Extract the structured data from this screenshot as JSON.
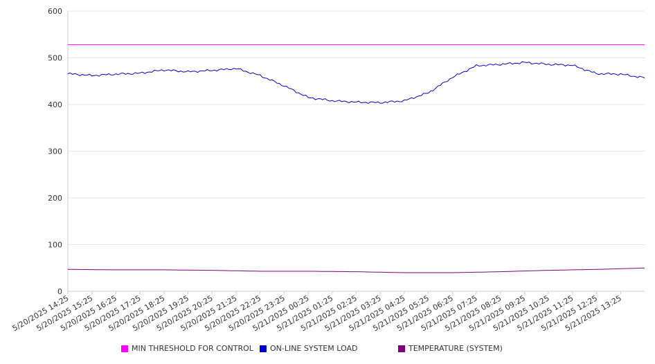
{
  "chart_data": {
    "type": "line",
    "title": "",
    "xlabel": "",
    "ylabel": "",
    "ylim": [
      0,
      600
    ],
    "yticks": [
      0,
      100,
      200,
      300,
      400,
      500,
      600
    ],
    "grid": true,
    "legend_position": "bottom",
    "x_tick_labels": [
      "5/20/2025 14:25",
      "5/20/2025 15:25",
      "5/20/2025 16:25",
      "5/20/2025 17:25",
      "5/20/2025 18:25",
      "5/20/2025 19:25",
      "5/20/2025 20:25",
      "5/20/2025 21:25",
      "5/20/2025 22:25",
      "5/20/2025 23:25",
      "5/21/2025 00:25",
      "5/21/2025 01:25",
      "5/21/2025 02:25",
      "5/21/2025 03:25",
      "5/21/2025 04:25",
      "5/21/2025 05:25",
      "5/21/2025 06:25",
      "5/21/2025 07:25",
      "5/21/2025 08:25",
      "5/21/2025 09:25",
      "5/21/2025 10:25",
      "5/21/2025 11:25",
      "5/21/2025 12:25",
      "5/21/2025 13:25"
    ],
    "x_range": [
      "5/20/2025 14:25",
      "5/21/2025 14:25"
    ],
    "series": [
      {
        "name": "MIN THRESHOLD FOR CONTROL",
        "color": "#ff00ff",
        "x": [
          "5/20/2025 14:25",
          "5/21/2025 14:25"
        ],
        "values": [
          528,
          528
        ]
      },
      {
        "name": "ON-LINE SYSTEM LOAD",
        "color": "#0000cc",
        "x": [
          "5/20/2025 14:25",
          "5/20/2025 15:25",
          "5/20/2025 16:25",
          "5/20/2025 17:25",
          "5/20/2025 18:25",
          "5/20/2025 19:25",
          "5/20/2025 20:25",
          "5/20/2025 21:25",
          "5/20/2025 22:25",
          "5/20/2025 23:25",
          "5/21/2025 00:25",
          "5/21/2025 01:25",
          "5/21/2025 02:25",
          "5/21/2025 03:25",
          "5/21/2025 04:25",
          "5/21/2025 05:25",
          "5/21/2025 06:25",
          "5/21/2025 07:25",
          "5/21/2025 08:25",
          "5/21/2025 09:25",
          "5/21/2025 10:25",
          "5/21/2025 11:25",
          "5/21/2025 12:25",
          "5/21/2025 13:25",
          "5/21/2025 14:25"
        ],
        "values": [
          466,
          462,
          465,
          467,
          474,
          470,
          473,
          477,
          462,
          440,
          415,
          408,
          405,
          404,
          408,
          425,
          458,
          483,
          486,
          490,
          486,
          484,
          466,
          465,
          457
        ]
      },
      {
        "name": "TEMPERATURE (SYSTEM)",
        "color": "#800080",
        "x": [
          "5/20/2025 14:25",
          "5/20/2025 16:25",
          "5/20/2025 18:25",
          "5/20/2025 20:25",
          "5/20/2025 22:25",
          "5/21/2025 00:25",
          "5/21/2025 02:25",
          "5/21/2025 04:25",
          "5/21/2025 06:25",
          "5/21/2025 08:25",
          "5/21/2025 10:25",
          "5/21/2025 12:25",
          "5/21/2025 14:25"
        ],
        "values": [
          47,
          46,
          46,
          45,
          43,
          43,
          42,
          40,
          40,
          42,
          45,
          47,
          50
        ]
      }
    ]
  }
}
